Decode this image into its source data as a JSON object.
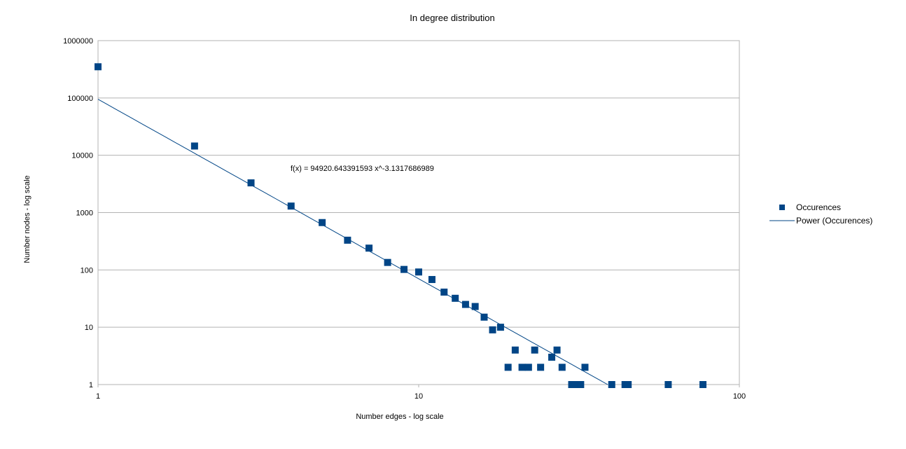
{
  "chart_data": {
    "type": "scatter",
    "title": "In degree distribution",
    "xlabel": "Number edges - log scale",
    "ylabel": "Number nodes - log scale",
    "x_scale": "log",
    "y_scale": "log",
    "xlim": [
      1,
      100
    ],
    "ylim": [
      1,
      1000000
    ],
    "x_ticks": [
      "1",
      "10",
      "100"
    ],
    "y_ticks": [
      "1",
      "10",
      "100",
      "1000",
      "10000",
      "100000",
      "1000000"
    ],
    "grid": "horizontal",
    "legend_position": "right",
    "series": [
      {
        "name": "Occurences",
        "color": "#004586",
        "marker": "square",
        "points": [
          {
            "x": 1,
            "y": 350000
          },
          {
            "x": 2,
            "y": 14500
          },
          {
            "x": 3,
            "y": 3300
          },
          {
            "x": 4,
            "y": 1300
          },
          {
            "x": 5,
            "y": 670
          },
          {
            "x": 6,
            "y": 330
          },
          {
            "x": 7,
            "y": 240
          },
          {
            "x": 8,
            "y": 135
          },
          {
            "x": 9,
            "y": 102
          },
          {
            "x": 10,
            "y": 92
          },
          {
            "x": 11,
            "y": 68
          },
          {
            "x": 12,
            "y": 41
          },
          {
            "x": 13,
            "y": 32
          },
          {
            "x": 14,
            "y": 25
          },
          {
            "x": 15,
            "y": 23
          },
          {
            "x": 16,
            "y": 15
          },
          {
            "x": 17,
            "y": 9
          },
          {
            "x": 18,
            "y": 10
          },
          {
            "x": 19,
            "y": 2
          },
          {
            "x": 20,
            "y": 4
          },
          {
            "x": 21,
            "y": 2
          },
          {
            "x": 22,
            "y": 2
          },
          {
            "x": 23,
            "y": 4
          },
          {
            "x": 24,
            "y": 2
          },
          {
            "x": 26,
            "y": 3
          },
          {
            "x": 27,
            "y": 4
          },
          {
            "x": 28,
            "y": 2
          },
          {
            "x": 30,
            "y": 1
          },
          {
            "x": 31,
            "y": 1
          },
          {
            "x": 32,
            "y": 1
          },
          {
            "x": 33,
            "y": 2
          },
          {
            "x": 40,
            "y": 1
          },
          {
            "x": 44,
            "y": 1
          },
          {
            "x": 45,
            "y": 1
          },
          {
            "x": 60,
            "y": 1
          },
          {
            "x": 77,
            "y": 1
          }
        ]
      },
      {
        "name": "Power (Occurences)",
        "color": "#004586",
        "type": "trendline",
        "coefficient": 94920.643391593,
        "exponent": -3.1317686989
      }
    ],
    "annotation": "f(x) = 94920.643391593 x^-3.1317686989"
  }
}
